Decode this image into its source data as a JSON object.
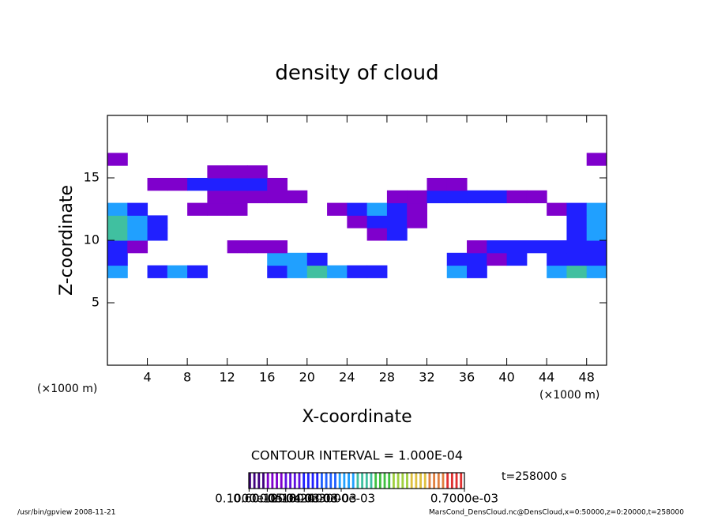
{
  "chart_data": {
    "type": "heatmap",
    "title": "density of cloud",
    "xlabel": "X-coordinate",
    "ylabel": "Z-coordinate",
    "x_unit": "(×1000 m)",
    "contour_interval": "CONTOUR INTERVAL = 1.000E-04",
    "time_label": "t=258000 s",
    "footer_left": "/usr/bin/gpview   2008-11-21",
    "footer_right": "MarsCond_DensCloud.nc@DensCloud,x=0:50000,z=0:20000,t=258000",
    "xlim": [
      0,
      50
    ],
    "ylim": [
      0,
      20
    ],
    "xticks": [
      4,
      8,
      12,
      16,
      20,
      24,
      28,
      32,
      36,
      40,
      44,
      48
    ],
    "yticks": [
      5,
      10,
      15
    ],
    "x": [
      1,
      3,
      5,
      7,
      9,
      11,
      13,
      15,
      17,
      19,
      21,
      23,
      25,
      27,
      29,
      31,
      33,
      35,
      37,
      39,
      41,
      43,
      45,
      47,
      49
    ],
    "y": [
      7.5,
      8.5,
      9.5,
      10.5,
      11.5,
      12.5,
      13.5,
      14.5,
      15.5,
      16.5
    ],
    "z_values": [
      [
        0.0003,
        null,
        0.0002,
        0.0003,
        0.0002,
        null,
        null,
        null,
        0.0002,
        0.0003,
        0.0004,
        0.0003,
        0.0002,
        0.0002,
        null,
        null,
        null,
        0.0003,
        0.0002,
        null,
        null,
        null,
        0.0003,
        0.0004,
        0.0003
      ],
      [
        0.0002,
        null,
        null,
        null,
        null,
        null,
        null,
        null,
        0.0003,
        0.0003,
        0.0002,
        null,
        null,
        null,
        null,
        null,
        null,
        0.0002,
        0.0002,
        0.0001,
        0.0002,
        null,
        0.0002,
        0.0002,
        0.0002
      ],
      [
        0.0002,
        0.0001,
        null,
        null,
        null,
        null,
        0.0001,
        0.0001,
        0.0001,
        null,
        null,
        null,
        null,
        null,
        null,
        null,
        null,
        null,
        0.0001,
        0.0002,
        0.0002,
        0.0002,
        0.0002,
        0.0002,
        0.0002
      ],
      [
        0.0004,
        0.0003,
        0.0002,
        null,
        null,
        null,
        null,
        null,
        null,
        null,
        null,
        null,
        null,
        0.0001,
        0.0002,
        null,
        null,
        null,
        null,
        null,
        null,
        null,
        null,
        0.0002,
        0.0003
      ],
      [
        0.0004,
        0.0003,
        0.0002,
        null,
        null,
        null,
        null,
        null,
        null,
        null,
        null,
        null,
        0.0001,
        0.0002,
        0.0002,
        0.0001,
        null,
        null,
        null,
        null,
        null,
        null,
        null,
        0.0002,
        0.0003
      ],
      [
        0.0003,
        0.0002,
        null,
        null,
        0.0001,
        0.0001,
        0.0001,
        null,
        null,
        null,
        null,
        0.0001,
        0.0002,
        0.0003,
        0.0002,
        0.0001,
        null,
        null,
        null,
        null,
        null,
        null,
        0.0001,
        0.0002,
        0.0003
      ],
      [
        null,
        null,
        null,
        null,
        null,
        0.0001,
        0.0001,
        0.0001,
        0.0001,
        0.0001,
        null,
        null,
        null,
        null,
        0.0001,
        0.0001,
        0.0002,
        0.0002,
        0.0002,
        0.0002,
        0.0001,
        0.0001,
        null,
        null,
        null
      ],
      [
        null,
        null,
        0.0001,
        0.0001,
        0.0002,
        0.0002,
        0.0002,
        0.0002,
        0.0001,
        null,
        null,
        null,
        null,
        null,
        null,
        null,
        0.0001,
        0.0001,
        null,
        null,
        null,
        null,
        null,
        null,
        null
      ],
      [
        null,
        null,
        null,
        null,
        null,
        0.0001,
        0.0001,
        0.0001,
        null,
        null,
        null,
        null,
        null,
        null,
        null,
        null,
        null,
        null,
        null,
        null,
        null,
        null,
        null,
        null,
        null
      ],
      [
        0.0001,
        null,
        null,
        null,
        null,
        null,
        null,
        null,
        null,
        null,
        null,
        null,
        null,
        null,
        null,
        null,
        null,
        null,
        null,
        null,
        null,
        null,
        null,
        null,
        0.0001
      ]
    ],
    "colormap": [
      "#40007f",
      "#7f00cc",
      "#6010e0",
      "#2020ff",
      "#2060ff",
      "#20a0ff",
      "#40c0a0",
      "#40c040",
      "#a0d040",
      "#e0c040",
      "#e08040",
      "#e03030"
    ],
    "clim": [
      0,
      0.0007
    ],
    "cticks": [
      {
        "value": 1e-06,
        "label": "0.1000e-05"
      },
      {
        "value": 6e-05,
        "label": "0.6000e-04"
      },
      {
        "value": 0.00012,
        "label": "0.1200e-03"
      },
      {
        "value": 0.00018,
        "label": "0.1800e-03"
      },
      {
        "value": 0.00024,
        "label": "0.2400e-03"
      },
      {
        "value": 0.0003,
        "label": "0.3000e-03"
      },
      {
        "value": 0.0007,
        "label": "0.7000e-03"
      }
    ]
  }
}
